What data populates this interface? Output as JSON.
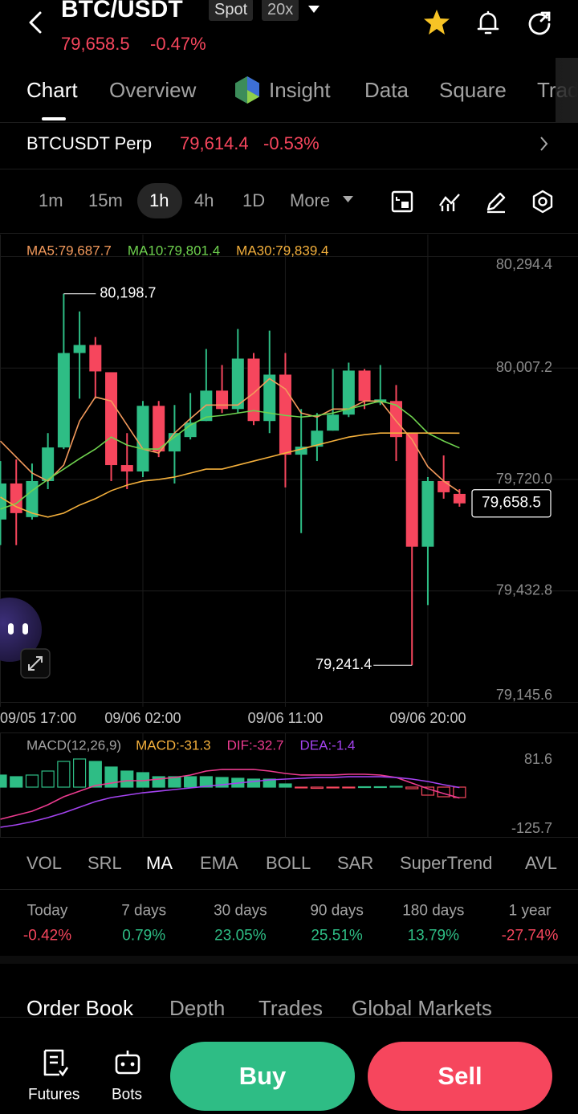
{
  "header": {
    "title": "BTC/USDT",
    "badges": [
      "Spot",
      "20x"
    ],
    "price": "79,658.5",
    "change": "-0.47%"
  },
  "tabs": [
    "Chart",
    "Overview",
    "Insight",
    "Data",
    "Square",
    "Trade"
  ],
  "perp": {
    "name": "BTCUSDT Perp",
    "price": "79,614.4",
    "change": "-0.53%"
  },
  "timeframes": [
    "1m",
    "15m",
    "1h",
    "4h",
    "1D",
    "More"
  ],
  "chart_data": [
    {
      "type": "candlestick",
      "categories": [
        "09/05 17:00",
        null,
        null,
        null,
        null,
        null,
        null,
        null,
        null,
        "09/06 02:00",
        null,
        null,
        null,
        null,
        null,
        null,
        null,
        null,
        "09/06 11:00",
        null,
        null,
        null,
        null,
        null,
        null,
        null,
        null,
        "09/06 20:00",
        null,
        null
      ],
      "open": [
        79616.9,
        79709.8,
        79623.1,
        79716.0,
        79802.6,
        80046.0,
        80066.7,
        79996.5,
        79757.2,
        79740.7,
        79909.9,
        79792.3,
        79829.4,
        79870.7,
        79949.1,
        79901.6,
        80031.6,
        79870.7,
        79990.3,
        79784.0,
        79804.7,
        79845.9,
        79887.2,
        80000.7,
        79918.1,
        79922.3,
        79839.7,
        79546.8,
        79716.0,
        79682.9
      ],
      "high": [
        79767.5,
        79771.7,
        79761.3,
        79839.7,
        80198.7,
        80153.3,
        80087.3,
        79996.5,
        79839.7,
        79922.3,
        79922.3,
        79911.9,
        79942.9,
        80056.4,
        80015.1,
        80107.9,
        80046.0,
        80103.8,
        80046.0,
        79901.6,
        79891.3,
        80004.8,
        80021.3,
        80004.8,
        80015.1,
        79963.5,
        79839.7,
        79726.3,
        79782.0,
        79695.3
      ],
      "low": [
        79550.9,
        79550.9,
        79616.9,
        79695.3,
        79798.5,
        79928.4,
        79928.4,
        79716.0,
        79695.3,
        79726.3,
        79777.8,
        79709.8,
        79823.2,
        79870.7,
        79891.3,
        79891.3,
        79860.4,
        79839.7,
        79699.5,
        79581.9,
        79767.5,
        79845.9,
        79881.0,
        79901.6,
        79911.9,
        79767.5,
        79241.4,
        79396.2,
        79670.6,
        79649.9
      ],
      "close": [
        79709.8,
        79633.4,
        79716.0,
        79802.6,
        80046.0,
        80066.7,
        79998.6,
        79757.2,
        79740.7,
        79909.9,
        79792.3,
        79839.7,
        79866.6,
        79949.1,
        79901.6,
        80031.6,
        79870.7,
        79990.3,
        79784.0,
        79804.7,
        79845.9,
        79887.2,
        80000.7,
        79922.3,
        79926.4,
        79829.4,
        79546.8,
        79716.0,
        79687.1,
        79658.5
      ],
      "up_color": "#2ebd85",
      "down_color": "#f6465d",
      "series": [
        {
          "name": "MA5:79,687.7",
          "color": "#f39a5c",
          "values": [
            79819.1,
            79777.8,
            79736.6,
            79716.0,
            79757.2,
            79870.7,
            79932.6,
            79922.3,
            79860.4,
            79798.5,
            79788.2,
            79839.7,
            79876.9,
            79911.9,
            79911.9,
            79911.9,
            79942.9,
            79980.0,
            79953.2,
            79891.3,
            79881.0,
            79901.6,
            79901.6,
            79922.3,
            79922.3,
            79870.7,
            79823.2,
            79753.1,
            79716.0,
            79687.7
          ]
        },
        {
          "name": "MA10:79,801.4",
          "color": "#6fd34f",
          "values": [
            79643.7,
            79658.2,
            79691.2,
            79720.1,
            79746.9,
            79773.7,
            79798.5,
            79829.4,
            79808.8,
            79798.5,
            79798.5,
            79829.4,
            79860.4,
            79881.0,
            79885.1,
            79891.3,
            79897.5,
            79891.3,
            79885.1,
            79881.0,
            79885.1,
            79891.3,
            79901.6,
            79911.9,
            79922.3,
            79911.9,
            79881.0,
            79839.7,
            79819.1,
            79801.4
          ]
        },
        {
          "name": "MA30:79,839.4",
          "color": "#f4b03c",
          "values": [
            79674.7,
            79649.9,
            79633.4,
            79623.1,
            79633.4,
            79654.1,
            79670.6,
            79691.2,
            79705.6,
            79716.0,
            79720.1,
            79726.3,
            79736.6,
            79746.9,
            79746.9,
            79757.2,
            79767.5,
            79777.8,
            79788.2,
            79798.5,
            79808.8,
            79819.1,
            79829.4,
            79835.6,
            79839.7,
            79839.7,
            79839.7,
            79839.7,
            79839.7,
            79839.4
          ]
        }
      ],
      "ylim": [
        79134.2,
        80351.4
      ],
      "yticks": [
        {
          "value": 80294.4,
          "label": "80,294.4"
        },
        {
          "value": 80007.2,
          "label": "80,007.2"
        },
        {
          "value": 79720.0,
          "label": "79,720.0"
        },
        {
          "value": 79432.8,
          "label": "79,432.8"
        },
        {
          "value": 79145.6,
          "label": "79,145.6"
        }
      ],
      "grid": true,
      "annotations": [
        {
          "value": 80198.7,
          "label": "80,198.7"
        },
        {
          "value": 79241.4,
          "label": "79,241.4"
        }
      ],
      "last_price": {
        "value": 79658.5,
        "label": "79,658.5"
      }
    },
    {
      "type": "macd",
      "title": "MACD(12,26,9)",
      "up_color": "#2ebd85",
      "down_color": "#f6465d",
      "series": [
        {
          "name": "MACD:-31.3",
          "color": "#f4b03c",
          "type": "histogram",
          "values": [
            36.2,
            31.3,
            36.2,
            48.2,
            77.1,
            84.4,
            77.1,
            60.3,
            48.2,
            43.4,
            31.3,
            31.3,
            31.3,
            31.3,
            28.9,
            26.5,
            24.1,
            24.1,
            9.6,
            -2.4,
            -3.6,
            -2.4,
            -1.2,
            1.2,
            1.2,
            2.4,
            -4.8,
            -24.1,
            -28.9,
            -31.3
          ]
        },
        {
          "name": "DIF:-32.7",
          "color": "#ec3b8f",
          "type": "line",
          "values": [
            -96.4,
            -84.4,
            -72.3,
            -53.0,
            -28.9,
            -12.1,
            4.8,
            12.1,
            19.3,
            19.3,
            24.1,
            28.9,
            36.2,
            48.2,
            53.0,
            53.0,
            53.0,
            48.2,
            41.0,
            36.2,
            36.2,
            36.2,
            38.6,
            38.6,
            36.2,
            28.9,
            12.1,
            -4.8,
            -19.3,
            -32.7
          ]
        },
        {
          "name": "DEA:-1.4",
          "color": "#a443f0",
          "type": "line",
          "values": [
            -120.5,
            -113.3,
            -103.6,
            -91.6,
            -77.1,
            -60.3,
            -43.4,
            -31.3,
            -24.1,
            -16.9,
            -12.1,
            -7.2,
            -2.4,
            2.4,
            7.2,
            12.1,
            16.9,
            21.7,
            24.1,
            26.5,
            28.9,
            28.9,
            31.3,
            31.3,
            31.3,
            28.9,
            24.1,
            16.9,
            7.2,
            -1.4
          ]
        }
      ],
      "ylim": [
        -144.6,
        115.7
      ],
      "yticks": [
        81.6,
        -125.7
      ]
    }
  ],
  "indicators": [
    "VOL",
    "SRL",
    "MA",
    "EMA",
    "BOLL",
    "SAR",
    "SuperTrend",
    "AVL"
  ],
  "performance": [
    {
      "label": "Today",
      "value": "-0.42%"
    },
    {
      "label": "7 days",
      "value": "0.79%"
    },
    {
      "label": "30 days",
      "value": "23.05%"
    },
    {
      "label": "90 days",
      "value": "25.51%"
    },
    {
      "label": "180 days",
      "value": "13.79%"
    },
    {
      "label": "1 year",
      "value": "-27.74%"
    }
  ],
  "order_tabs": [
    "Order Book",
    "Depth",
    "Trades",
    "Global Markets"
  ],
  "bottom": {
    "futures": "Futures",
    "bots": "Bots",
    "buy": "Buy",
    "sell": "Sell"
  }
}
